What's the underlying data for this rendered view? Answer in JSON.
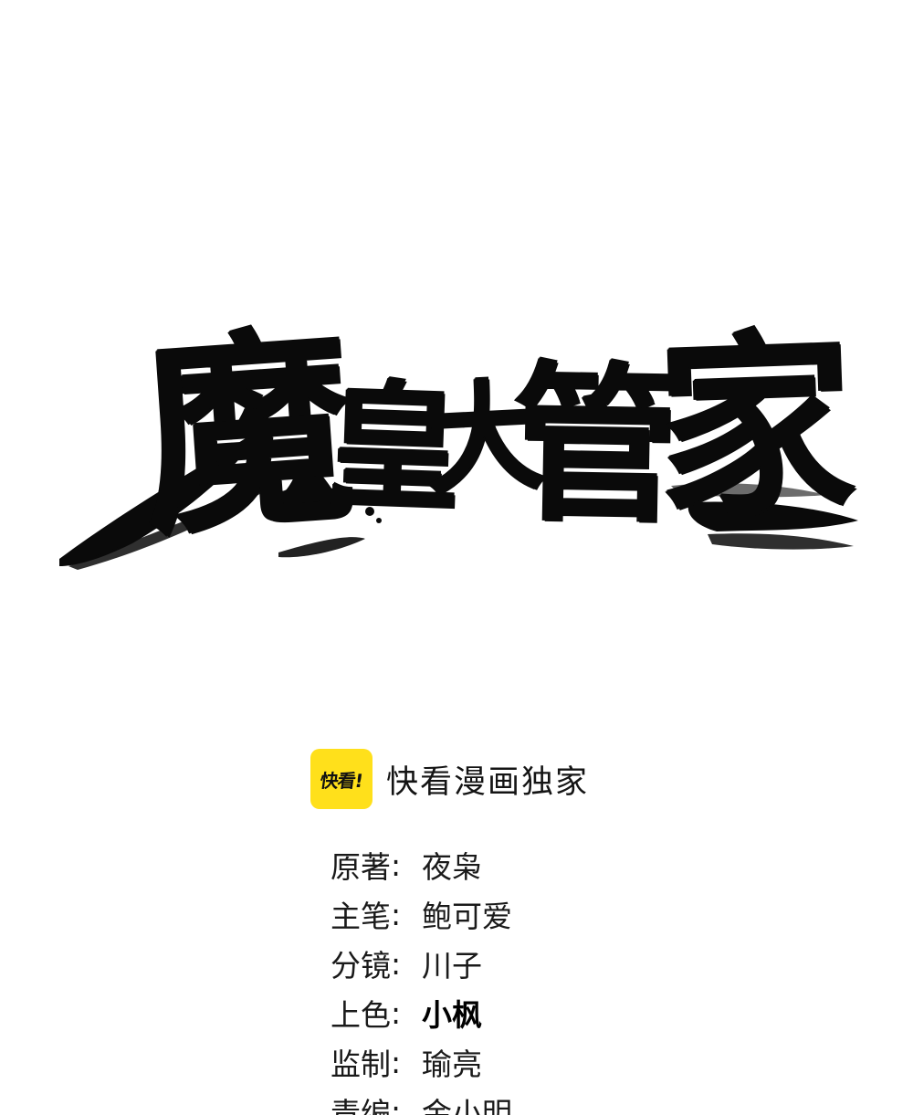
{
  "title": {
    "characters": [
      "魔",
      "皇",
      "大",
      "管",
      "家"
    ],
    "color": "#0a0a0a"
  },
  "exclusive": {
    "logo_text": "快看!",
    "logo_color": "#ffe01b",
    "label": "快看漫画独家"
  },
  "credits": [
    {
      "role": "原著",
      "separator": ":",
      "name": "夜枭"
    },
    {
      "role": "主笔",
      "separator": ":",
      "name": "鲍可爱"
    },
    {
      "role": "分镜",
      "separator": ":",
      "name": "川子"
    },
    {
      "role": "上色",
      "separator": ":",
      "name": "小枫"
    },
    {
      "role": "监制",
      "separator": ":",
      "name": "瑜亮"
    },
    {
      "role": "责编",
      "separator": ":",
      "name": "金小明"
    }
  ]
}
